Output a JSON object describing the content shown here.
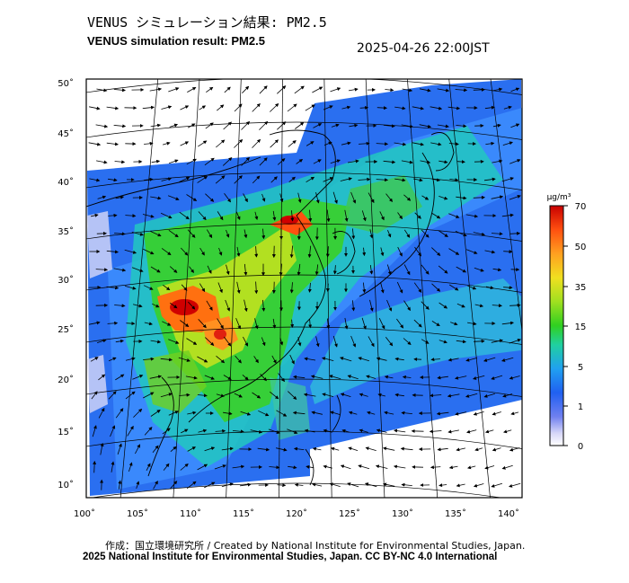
{
  "header": {
    "title_jp": "VENUS シミュレーション結果: PM2.5",
    "title_en": "VENUS simulation result: PM2.5",
    "timestamp": "2025-04-26 22:00JST"
  },
  "map": {
    "lon_ticks": [
      "100˚",
      "105˚",
      "110˚",
      "115˚",
      "120˚",
      "125˚",
      "130˚",
      "135˚",
      "140˚"
    ],
    "lat_ticks": [
      "50˚",
      "45˚",
      "40˚",
      "35˚",
      "30˚",
      "25˚",
      "20˚",
      "15˚",
      "10˚"
    ],
    "colorbar": {
      "unit": "μg/m³",
      "labels": [
        "70",
        "50",
        "35",
        "15",
        "5",
        "1",
        "0"
      ],
      "colors": [
        "#d00000",
        "#ff6010",
        "#ffb020",
        "#f0e020",
        "#a0e020",
        "#30d020",
        "#20d0a0",
        "#20a0f0",
        "#2060f0",
        "#6080f0",
        "#d8d8f8",
        "#ffffff"
      ]
    }
  },
  "footer": {
    "credit_jp": "作成：国立環境研究所 / Created by National Institute for Environmental Studies, Japan.",
    "credit_en": "2025 National Institute for Environmental Studies, Japan. CC BY-NC 4.0 International"
  }
}
